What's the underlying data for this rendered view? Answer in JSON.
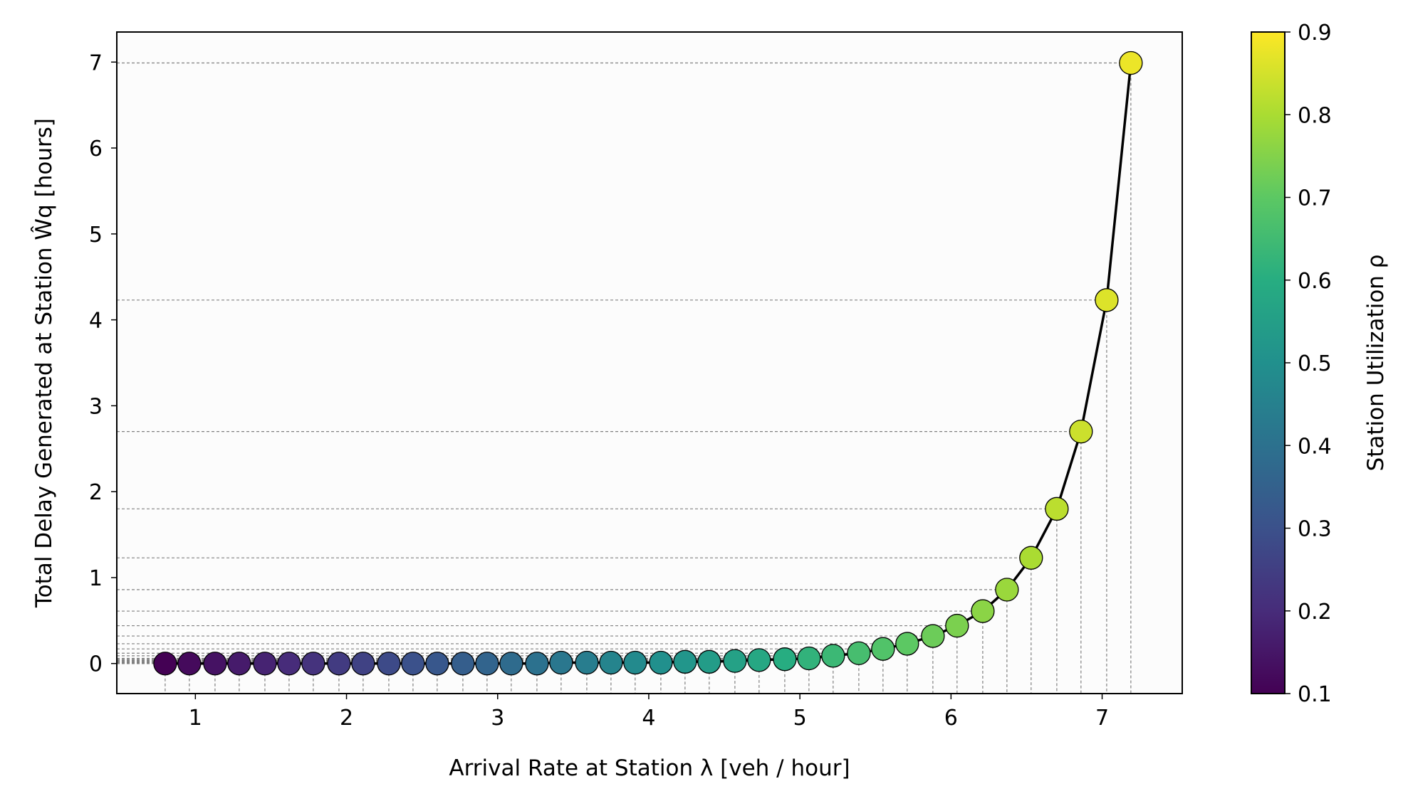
{
  "chart_data": {
    "type": "scatter",
    "xlabel": "Arrival Rate at Station λ [veh / hour]",
    "ylabel": "Total Delay Generated at Station Ŵq [hours]",
    "colorbar_label": "Station Utilization ρ",
    "xlim": [
      0.48,
      7.53
    ],
    "ylim": [
      -0.35,
      7.35
    ],
    "xticks": [
      "1",
      "2",
      "3",
      "4",
      "5",
      "6",
      "7"
    ],
    "yticks": [
      "0",
      "1",
      "2",
      "3",
      "4",
      "5",
      "6",
      "7"
    ],
    "colorbar_range": [
      0.1,
      0.9
    ],
    "colorbar_ticks": [
      "0.1",
      "0.2",
      "0.3",
      "0.4",
      "0.5",
      "0.6",
      "0.7",
      "0.8",
      "0.9"
    ],
    "colormap": "viridis",
    "grid": false,
    "reference_lines": "dashed drop lines from each point to both axes",
    "series": [
      {
        "x": [
          0.8,
          0.96,
          1.13,
          1.29,
          1.46,
          1.62,
          1.78,
          1.95,
          2.11,
          2.28,
          2.44,
          2.6,
          2.77,
          2.93,
          3.09,
          3.26,
          3.42,
          3.59,
          3.75,
          3.91,
          4.08,
          4.24,
          4.4,
          4.57,
          4.73,
          4.9,
          5.06,
          5.22,
          5.39,
          5.55,
          5.71,
          5.88,
          6.04,
          6.21,
          6.37,
          6.53,
          6.7,
          6.86,
          7.03,
          7.19
        ],
        "y": [
          0.0,
          0.0,
          0.0,
          0.0,
          0.0,
          0.0,
          0.0,
          0.0,
          0.0,
          0.0,
          0.0,
          0.0,
          0.0,
          0.0,
          0.0,
          0.0,
          0.01,
          0.01,
          0.01,
          0.01,
          0.01,
          0.02,
          0.02,
          0.03,
          0.04,
          0.05,
          0.06,
          0.09,
          0.12,
          0.17,
          0.23,
          0.32,
          0.44,
          0.61,
          0.86,
          1.23,
          1.8,
          2.7,
          4.23,
          6.99
        ],
        "utilization": [
          0.1,
          0.12,
          0.14,
          0.16,
          0.18,
          0.2,
          0.22,
          0.24,
          0.26,
          0.28,
          0.3,
          0.32,
          0.34,
          0.36,
          0.38,
          0.4,
          0.42,
          0.44,
          0.46,
          0.48,
          0.5,
          0.52,
          0.54,
          0.56,
          0.58,
          0.6,
          0.62,
          0.64,
          0.66,
          0.68,
          0.7,
          0.72,
          0.74,
          0.76,
          0.78,
          0.8,
          0.82,
          0.84,
          0.86,
          0.88
        ]
      }
    ],
    "colors": {
      "line": "#000000",
      "drop_lines": "#808080",
      "plot_background": "#fcfcfc"
    }
  }
}
